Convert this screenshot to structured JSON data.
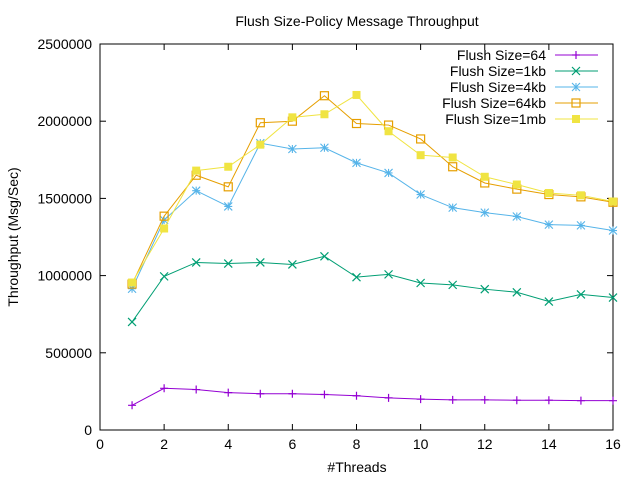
{
  "chart_data": {
    "type": "line",
    "title": "Flush Size-Policy Message Throughput",
    "xlabel": "#Threads",
    "ylabel": "Throughput (Msg/Sec)",
    "xlim": [
      0,
      16
    ],
    "ylim": [
      0,
      2500000
    ],
    "xticks": [
      0,
      2,
      4,
      6,
      8,
      10,
      12,
      14,
      16
    ],
    "yticks": [
      0,
      500000,
      1000000,
      1500000,
      2000000,
      2500000
    ],
    "x": [
      1,
      2,
      3,
      4,
      5,
      6,
      7,
      8,
      9,
      10,
      11,
      12,
      13,
      14,
      15,
      16
    ],
    "legend_position": "top-right",
    "grid": false,
    "series": [
      {
        "name": "Flush Size=64",
        "color": "#9400d3",
        "marker": "plus",
        "values": [
          160000,
          270000,
          262000,
          242000,
          235000,
          235000,
          230000,
          222000,
          208000,
          200000,
          195000,
          195000,
          193000,
          193000,
          190000,
          190000
        ]
      },
      {
        "name": "Flush Size=1kb",
        "color": "#009e73",
        "marker": "cross",
        "values": [
          700000,
          995000,
          1085000,
          1078000,
          1085000,
          1072000,
          1125000,
          990000,
          1008000,
          952000,
          940000,
          912000,
          892000,
          832000,
          878000,
          858000
        ]
      },
      {
        "name": "Flush Size=4kb",
        "color": "#56b4e9",
        "marker": "star",
        "values": [
          915000,
          1360000,
          1550000,
          1448000,
          1858000,
          1820000,
          1828000,
          1730000,
          1665000,
          1525000,
          1440000,
          1408000,
          1383000,
          1330000,
          1325000,
          1292000
        ]
      },
      {
        "name": "Flush Size=64kb",
        "color": "#e69f00",
        "marker": "open-square",
        "values": [
          945000,
          1385000,
          1650000,
          1575000,
          1990000,
          2000000,
          2165000,
          1985000,
          1975000,
          1885000,
          1705000,
          1600000,
          1560000,
          1525000,
          1510000,
          1475000
        ]
      },
      {
        "name": "Flush Size=1mb",
        "color": "#f0e442",
        "marker": "filled-square",
        "values": [
          955000,
          1305000,
          1680000,
          1705000,
          1848000,
          2025000,
          2045000,
          2170000,
          1935000,
          1780000,
          1765000,
          1640000,
          1590000,
          1535000,
          1520000,
          1480000
        ]
      }
    ]
  }
}
